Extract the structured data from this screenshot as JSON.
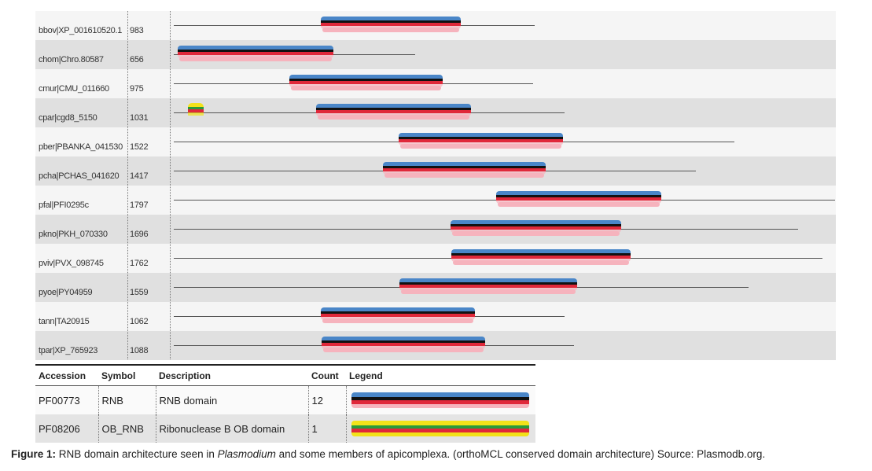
{
  "rows": [
    {
      "accession": "bbov|XP_001610520.1",
      "length": "983",
      "domains": [
        {
          "type": "RNB",
          "start": 408,
          "end": 586
        }
      ],
      "line_end": 680
    },
    {
      "accession": "chom|Chro.80587",
      "length": "656",
      "domains": [
        {
          "type": "RNB",
          "start": 226,
          "end": 424
        }
      ],
      "line_end": 528
    },
    {
      "accession": "cmur|CMU_011660",
      "length": "975",
      "domains": [
        {
          "type": "RNB",
          "start": 368,
          "end": 563
        }
      ],
      "line_end": 678
    },
    {
      "accession": "cpar|cgd8_5150",
      "length": "1031",
      "domains": [
        {
          "type": "OB_RNB",
          "start": 239,
          "end": 259
        },
        {
          "type": "RNB",
          "start": 402,
          "end": 599
        }
      ],
      "line_end": 718
    },
    {
      "accession": "pber|PBANKA_041530",
      "length": "1522",
      "domains": [
        {
          "type": "RNB",
          "start": 507,
          "end": 716
        }
      ],
      "line_end": 934
    },
    {
      "accession": "pcha|PCHAS_041620",
      "length": "1417",
      "domains": [
        {
          "type": "RNB",
          "start": 487,
          "end": 694
        }
      ],
      "line_end": 885
    },
    {
      "accession": "pfal|PFI0295c",
      "length": "1797",
      "domains": [
        {
          "type": "RNB",
          "start": 631,
          "end": 841
        }
      ],
      "line_end": 1062
    },
    {
      "accession": "pkno|PKH_070330",
      "length": "1696",
      "domains": [
        {
          "type": "RNB",
          "start": 573,
          "end": 790
        }
      ],
      "line_end": 1015
    },
    {
      "accession": "pviv|PVX_098745",
      "length": "1762",
      "domains": [
        {
          "type": "RNB",
          "start": 574,
          "end": 802
        }
      ],
      "line_end": 1046
    },
    {
      "accession": "pyoe|PY04959",
      "length": "1559",
      "domains": [
        {
          "type": "RNB",
          "start": 508,
          "end": 734
        }
      ],
      "line_end": 952
    },
    {
      "accession": "tann|TA20915",
      "length": "1062",
      "domains": [
        {
          "type": "RNB",
          "start": 408,
          "end": 604
        }
      ],
      "line_end": 718
    },
    {
      "accession": "tpar|XP_765923",
      "length": "1088",
      "domains": [
        {
          "type": "RNB",
          "start": 409,
          "end": 617
        }
      ],
      "line_end": 730
    }
  ],
  "legend": {
    "headers": {
      "accession": "Accession",
      "symbol": "Symbol",
      "description": "Description",
      "count": "Count",
      "legend": "Legend"
    },
    "entries": [
      {
        "accession": "PF00773",
        "symbol": "RNB",
        "description": "RNB domain",
        "count": "12"
      },
      {
        "accession": "PF08206",
        "symbol": "OB_RNB",
        "description": "Ribonuclease B OB domain",
        "count": "1"
      }
    ]
  },
  "domain_colors": {
    "RNB": [
      "#4a86c8",
      "#111111",
      "#e0283a",
      "#f6b3bd"
    ],
    "OB_RNB": [
      "#f2e21a",
      "#2a9a3a",
      "#e0283a",
      "#f2e21a"
    ]
  },
  "caption": {
    "label": "Figure 1:",
    "text_before": " RNB domain architecture seen in ",
    "italic": "Plasmodium",
    "text_after": " and some members of apicomplexa. (orthoMCL conserved domain architecture) Source: Plasmodb.org."
  }
}
